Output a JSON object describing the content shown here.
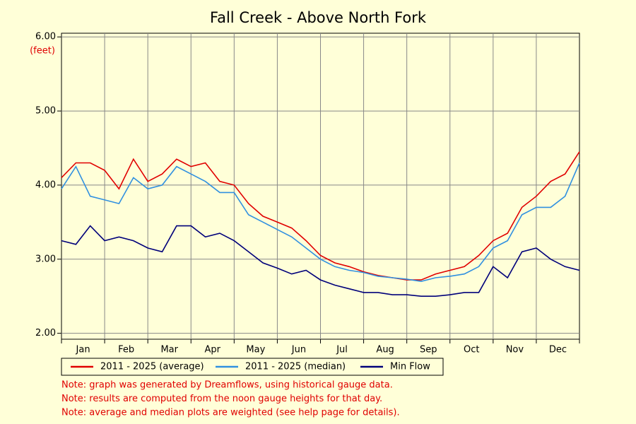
{
  "chart_data": {
    "type": "line",
    "title": "Fall Creek - Above North Fork",
    "y_unit": "(feet)",
    "x_labels": [
      "Jan",
      "Feb",
      "Mar",
      "Apr",
      "May",
      "Jun",
      "Jul",
      "Aug",
      "Sep",
      "Oct",
      "Nov",
      "Dec"
    ],
    "ylim": [
      1.92,
      6.05
    ],
    "yticks": [
      {
        "value": 2,
        "label": "2.00"
      },
      {
        "value": 3,
        "label": "3.00"
      },
      {
        "value": 4,
        "label": "4.00"
      },
      {
        "value": 5,
        "label": "5.00"
      },
      {
        "value": 6,
        "label": "6.00"
      }
    ],
    "grid": true,
    "series": [
      {
        "name": "2011 - 2025 (average)",
        "color": "#e00000",
        "values": [
          4.1,
          4.3,
          4.3,
          4.2,
          3.95,
          4.35,
          4.05,
          4.15,
          4.35,
          4.25,
          4.3,
          4.05,
          4.0,
          3.75,
          3.58,
          3.5,
          3.42,
          3.25,
          3.05,
          2.95,
          2.9,
          2.83,
          2.78,
          2.75,
          2.72,
          2.72,
          2.8,
          2.85,
          2.9,
          3.05,
          3.25,
          3.35,
          3.7,
          3.85,
          4.05,
          4.15,
          4.45
        ]
      },
      {
        "name": "2011 - 2025 (median)",
        "color": "#3090e0",
        "values": [
          3.95,
          4.25,
          3.85,
          3.8,
          3.75,
          4.1,
          3.95,
          4.0,
          4.25,
          4.15,
          4.05,
          3.9,
          3.9,
          3.6,
          3.5,
          3.4,
          3.3,
          3.15,
          3.0,
          2.9,
          2.85,
          2.82,
          2.77,
          2.75,
          2.73,
          2.7,
          2.75,
          2.77,
          2.8,
          2.9,
          3.15,
          3.25,
          3.6,
          3.7,
          3.7,
          3.85,
          4.3
        ]
      },
      {
        "name": "Min Flow",
        "color": "#00007a",
        "values": [
          3.25,
          3.2,
          3.45,
          3.25,
          3.3,
          3.25,
          3.15,
          3.1,
          3.45,
          3.45,
          3.3,
          3.35,
          3.25,
          3.1,
          2.95,
          2.88,
          2.8,
          2.85,
          2.72,
          2.65,
          2.6,
          2.55,
          2.55,
          2.52,
          2.52,
          2.5,
          2.5,
          2.52,
          2.55,
          2.55,
          2.9,
          2.75,
          3.1,
          3.15,
          3.0,
          2.9,
          2.85
        ]
      }
    ],
    "notes": [
      "Note: graph was generated by Dreamflows, using historical gauge data.",
      "Note: results are computed from the noon gauge heights for that day.",
      "Note: average and median plots are weighted (see help page for details)."
    ]
  }
}
